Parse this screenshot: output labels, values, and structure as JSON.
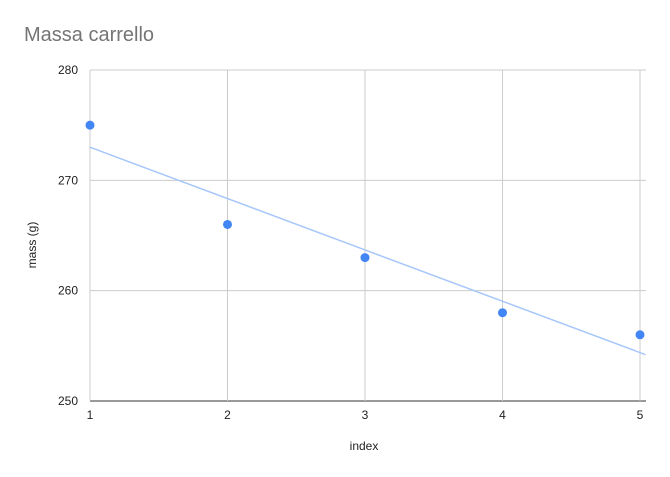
{
  "chart_data": {
    "type": "scatter",
    "title": "Massa carrello",
    "xlabel": "index",
    "ylabel": "mass (g)",
    "xlim": [
      1,
      5
    ],
    "ylim": [
      250,
      280
    ],
    "xticks": [
      1,
      2,
      3,
      4,
      5
    ],
    "yticks": [
      250,
      260,
      270,
      280
    ],
    "grid": true,
    "legend": "none",
    "points": [
      {
        "x": 1,
        "y": 275
      },
      {
        "x": 2,
        "y": 266
      },
      {
        "x": 3,
        "y": 263
      },
      {
        "x": 4,
        "y": 258
      },
      {
        "x": 5,
        "y": 256
      }
    ],
    "trendline": {
      "type": "linear",
      "x": [
        1,
        5.04
      ],
      "y": [
        273,
        254.2
      ]
    },
    "colors": {
      "points": "#4285f4",
      "trendline": "#a8c7fa",
      "grid": "#cccccc"
    }
  }
}
